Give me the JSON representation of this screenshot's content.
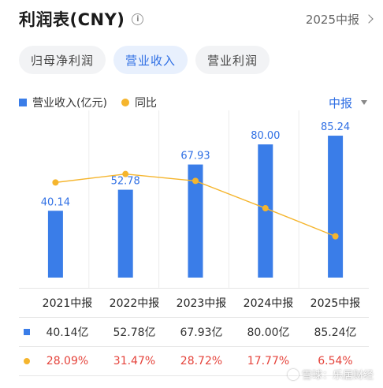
{
  "header": {
    "title": "利润表(CNY)",
    "info_icon": "info-icon",
    "period_link": "2025中报"
  },
  "tabs": [
    {
      "label": "归母净利润",
      "active": false
    },
    {
      "label": "营业收入",
      "active": true
    },
    {
      "label": "营业利润",
      "active": false
    }
  ],
  "legend": {
    "bar_label": "营业收入(亿元)",
    "line_label": "同比",
    "period_select": "中报"
  },
  "colors": {
    "bar": "#3a7de8",
    "line": "#f5b52d",
    "accent": "#2f6fe4",
    "negative_text": "#e5443c"
  },
  "chart_data": {
    "type": "bar",
    "categories": [
      "2021中报",
      "2022中报",
      "2023中报",
      "2024中报",
      "2025中报"
    ],
    "series": [
      {
        "name": "营业收入(亿元)",
        "type": "bar",
        "values": [
          40.14,
          52.78,
          67.93,
          80.0,
          85.24
        ],
        "labels": [
          "40.14",
          "52.78",
          "67.93",
          "80.00",
          "85.24"
        ]
      },
      {
        "name": "同比",
        "type": "line",
        "values": [
          28.09,
          31.47,
          28.72,
          17.77,
          6.54
        ]
      }
    ],
    "ylim": [
      0,
      90
    ],
    "line_ylim": [
      -10,
      50
    ],
    "legend_position": "top-left",
    "grid": false
  },
  "table": {
    "headers": [
      "2021中报",
      "2022中报",
      "2023中报",
      "2024中报",
      "2025中报"
    ],
    "revenue_row": [
      "40.14亿",
      "52.78亿",
      "67.93亿",
      "80.00亿",
      "85.24亿"
    ],
    "yoy_row": [
      "28.09%",
      "31.47%",
      "28.72%",
      "17.77%",
      "6.54%"
    ]
  },
  "watermark": "雪球：乐居财经"
}
